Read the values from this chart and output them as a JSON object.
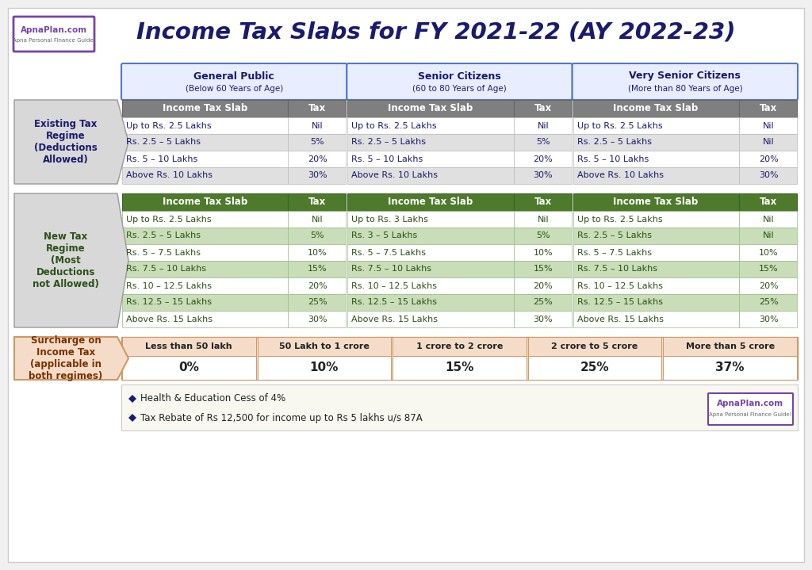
{
  "title": "Income Tax Slabs for FY 2021-22 (AY 2022-23)",
  "title_color": "#1a1a6e",
  "bg_color": "#f0f0f0",
  "col_headers": [
    "General Public\n(Below 60 Years of Age)",
    "Senior Citizens\n(60 to 80 Years of Age)",
    "Very Senior Citizens\n(More than 80 Years of Age)"
  ],
  "existing_regime_label": "Existing Tax\nRegime\n(Deductions\nAllowed)",
  "new_regime_label": "New Tax\nRegime\n(Most\nDeductions\nnot Allowed)",
  "surcharge_label": "Surcharge on\nIncome Tax\n(applicable in\nboth regimes)",
  "existing_data": [
    [
      [
        "Up to Rs. 2.5 Lakhs",
        "Nil"
      ],
      [
        "Up to Rs. 2.5 Lakhs",
        "Nil"
      ],
      [
        "Up to Rs. 2.5 Lakhs",
        "Nil"
      ]
    ],
    [
      [
        "Rs. 2.5 – 5 Lakhs",
        "5%"
      ],
      [
        "Rs. 2.5 – 5 Lakhs",
        "5%"
      ],
      [
        "Rs. 2.5 – 5 Lakhs",
        "Nil"
      ]
    ],
    [
      [
        "Rs. 5 – 10 Lakhs",
        "20%"
      ],
      [
        "Rs. 5 – 10 Lakhs",
        "20%"
      ],
      [
        "Rs. 5 – 10 Lakhs",
        "20%"
      ]
    ],
    [
      [
        "Above Rs. 10 Lakhs",
        "30%"
      ],
      [
        "Above Rs. 10 Lakhs",
        "30%"
      ],
      [
        "Above Rs. 10 Lakhs",
        "30%"
      ]
    ]
  ],
  "new_data": [
    [
      [
        "Up to Rs. 2.5 Lakhs",
        "Nil"
      ],
      [
        "Up to Rs. 3 Lakhs",
        "Nil"
      ],
      [
        "Up to Rs. 2.5 Lakhs",
        "Nil"
      ]
    ],
    [
      [
        "Rs. 2.5 – 5 Lakhs",
        "5%"
      ],
      [
        "Rs. 3 – 5 Lakhs",
        "5%"
      ],
      [
        "Rs. 2.5 – 5 Lakhs",
        "Nil"
      ]
    ],
    [
      [
        "Rs. 5 – 7.5 Lakhs",
        "10%"
      ],
      [
        "Rs. 5 – 7.5 Lakhs",
        "10%"
      ],
      [
        "Rs. 5 – 7.5 Lakhs",
        "10%"
      ]
    ],
    [
      [
        "Rs. 7.5 – 10 Lakhs",
        "15%"
      ],
      [
        "Rs. 7.5 – 10 Lakhs",
        "15%"
      ],
      [
        "Rs. 7.5 – 10 Lakhs",
        "15%"
      ]
    ],
    [
      [
        "Rs. 10 – 12.5 Lakhs",
        "20%"
      ],
      [
        "Rs. 10 – 12.5 Lakhs",
        "20%"
      ],
      [
        "Rs. 10 – 12.5 Lakhs",
        "20%"
      ]
    ],
    [
      [
        "Rs. 12.5 – 15 Lakhs",
        "25%"
      ],
      [
        "Rs. 12.5 – 15 Lakhs",
        "25%"
      ],
      [
        "Rs. 12.5 – 15 Lakhs",
        "25%"
      ]
    ],
    [
      [
        "Above Rs. 15 Lakhs",
        "30%"
      ],
      [
        "Above Rs. 15 Lakhs",
        "30%"
      ],
      [
        "Above Rs. 15 Lakhs",
        "30%"
      ]
    ]
  ],
  "surcharge_headers": [
    "Less than 50 lakh",
    "50 Lakh to 1 crore",
    "1 crore to 2 crore",
    "2 crore to 5 crore",
    "More than 5 crore"
  ],
  "surcharge_values": [
    "0%",
    "10%",
    "15%",
    "25%",
    "37%"
  ],
  "footer_notes": [
    "Health & Education Cess of 4%",
    "Tax Rebate of Rs 12,500 for income up to Rs 5 lakhs u/s 87A"
  ],
  "existing_header_bg": "#7f7f7f",
  "existing_row_bg_odd": "#ffffff",
  "existing_row_bg_even": "#e0e0e0",
  "new_header_bg": "#4e7a2b",
  "new_row_bg_odd": "#ffffff",
  "new_row_bg_even": "#c8ddb8",
  "surcharge_header_bg": "#f5dcc8",
  "surcharge_value_bg": "#ffffff",
  "col_header_bg": "#e8eeff",
  "col_header_border": "#5577cc",
  "existing_label_bg": "#d8d8d8",
  "new_label_bg": "#d8d8d8",
  "surcharge_label_bg": "#f5dcc8",
  "text_dark_blue": "#1a1a6e",
  "text_green_dark": "#2d5016",
  "text_white": "#ffffff",
  "text_brown": "#7b3000",
  "text_black": "#222222",
  "logo_border": "#7744aa",
  "logo_text": "#7744aa",
  "logo_subtext": "#666666",
  "footer_bg": "#f8f8f0",
  "footer_border": "#cccccc"
}
